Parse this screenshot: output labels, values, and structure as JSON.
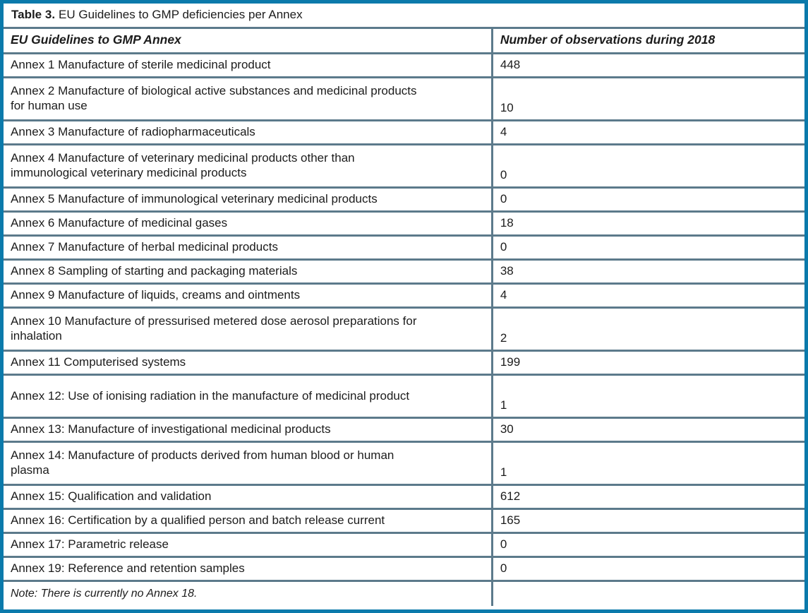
{
  "table": {
    "title_prefix": "Table 3.",
    "title_rest": "EU Guidelines to GMP deficiencies per Annex",
    "columns": {
      "annex": "EU Guidelines to GMP Annex",
      "observations": "Number of observations during 2018"
    },
    "rows": [
      {
        "label": "Annex 1 Manufacture of sterile medicinal product",
        "value": "448"
      },
      {
        "label": "Annex 2 Manufacture of biological active substances and medicinal products for human use",
        "value": "10"
      },
      {
        "label": "Annex 3 Manufacture of radiopharmaceuticals",
        "value": "4"
      },
      {
        "label": "Annex 4 Manufacture of veterinary medicinal products other than immunological veterinary medicinal products",
        "value": "0"
      },
      {
        "label": "Annex 5 Manufacture of immunological veterinary medicinal products",
        "value": "0"
      },
      {
        "label": "Annex 6 Manufacture of medicinal gases",
        "value": "18"
      },
      {
        "label": "Annex 7 Manufacture of herbal medicinal products",
        "value": "0"
      },
      {
        "label": "Annex 8 Sampling of starting and packaging materials",
        "value": "38"
      },
      {
        "label": "Annex 9 Manufacture of liquids, creams and ointments",
        "value": "4"
      },
      {
        "label": "Annex 10 Manufacture of pressurised metered dose aerosol preparations for inhalation",
        "value": "2"
      },
      {
        "label": "Annex 11 Computerised systems",
        "value": "199"
      },
      {
        "label": "Annex 12: Use of ionising radiation in the manufacture of medicinal product",
        "value": "1"
      },
      {
        "label": "Annex 13: Manufacture of investigational medicinal products",
        "value": "30"
      },
      {
        "label": "Annex 14: Manufacture of products derived from human blood or human plasma",
        "value": "1"
      },
      {
        "label": "Annex 15: Qualification and validation",
        "value": "612"
      },
      {
        "label": "Annex 16: Certification by a qualified person and batch release current",
        "value": "165"
      },
      {
        "label": "Annex 17: Parametric release",
        "value": "0"
      },
      {
        "label": "Annex 19: Reference and retention samples",
        "value": "0"
      }
    ],
    "note": "Note: There is currently no Annex 18."
  },
  "colors": {
    "outer_border": "#0b7aab",
    "inner_border": "#5c7a8b",
    "text_color": "#1c1c1c"
  }
}
